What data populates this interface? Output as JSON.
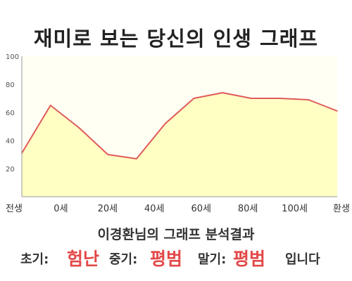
{
  "chart_data": {
    "type": "area",
    "title": "재미로 보는 당신의 인생 그래프",
    "x": [
      0,
      1,
      2,
      3,
      4,
      5,
      6,
      7,
      8,
      9,
      10,
      11
    ],
    "x_tick_labels": [
      "전생",
      "0세",
      "20세",
      "40세",
      "60세",
      "80세",
      "100세",
      "환생"
    ],
    "y": [
      31,
      65,
      49,
      30,
      27,
      52,
      70,
      74,
      70,
      70,
      69,
      61
    ],
    "ylim": [
      0,
      100
    ],
    "y_ticks": [
      20,
      40,
      60,
      80,
      100
    ],
    "grid": false,
    "colors": {
      "fill": "#ffffc4",
      "line": "#e05a5a",
      "plot_bg": "#fffff4"
    }
  },
  "summary": {
    "subtitle": "이경환님의 그래프 분석결과",
    "early_label": "초기:",
    "early_value": "험난",
    "middle_label": "중기:",
    "middle_value": "평범",
    "late_label": "말기:",
    "late_value": "평범",
    "ending": "입니다"
  }
}
